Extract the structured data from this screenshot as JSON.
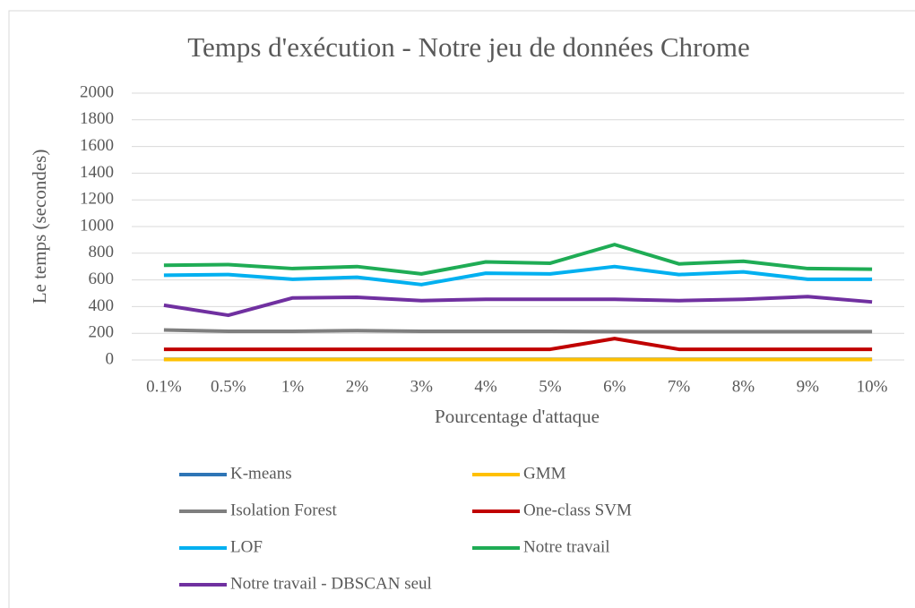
{
  "chart_data": {
    "type": "line",
    "title": "Temps d'exécution - Notre jeu de données Chrome",
    "xlabel": "Pourcentage d'attaque",
    "ylabel": "Le temps (secondes)",
    "categories": [
      "0.1%",
      "0.5%",
      "1%",
      "2%",
      "3%",
      "4%",
      "5%",
      "6%",
      "7%",
      "8%",
      "9%",
      "10%"
    ],
    "ylim": [
      0,
      2000
    ],
    "yticks": [
      0,
      200,
      400,
      600,
      800,
      1000,
      1200,
      1400,
      1600,
      1800,
      2000
    ],
    "grid": true,
    "legend": "bottom",
    "series": [
      {
        "name": "K-means",
        "color": "#2e75b6",
        "values": [
          5,
          5,
          5,
          5,
          5,
          5,
          5,
          5,
          5,
          5,
          5,
          5
        ]
      },
      {
        "name": "GMM",
        "color": "#ffc000",
        "values": [
          3,
          3,
          3,
          3,
          3,
          3,
          3,
          3,
          3,
          3,
          3,
          3
        ]
      },
      {
        "name": "Isolation Forest",
        "color": "#7f7f7f",
        "values": [
          225,
          215,
          215,
          220,
          215,
          215,
          215,
          212,
          212,
          212,
          212,
          212
        ]
      },
      {
        "name": "One-class SVM",
        "color": "#c00000",
        "values": [
          80,
          80,
          80,
          80,
          80,
          80,
          80,
          160,
          80,
          80,
          80,
          80
        ]
      },
      {
        "name": "LOF",
        "color": "#00b0f0",
        "values": [
          635,
          640,
          605,
          620,
          565,
          650,
          645,
          700,
          640,
          660,
          605,
          605
        ]
      },
      {
        "name": "Notre travail",
        "color": "#1fac55",
        "values": [
          710,
          715,
          685,
          700,
          645,
          735,
          725,
          865,
          720,
          740,
          685,
          680
        ]
      },
      {
        "name": "Notre travail - DBSCAN seul",
        "color": "#7030a0",
        "values": [
          410,
          335,
          465,
          470,
          445,
          455,
          455,
          455,
          445,
          455,
          475,
          435
        ]
      }
    ]
  }
}
